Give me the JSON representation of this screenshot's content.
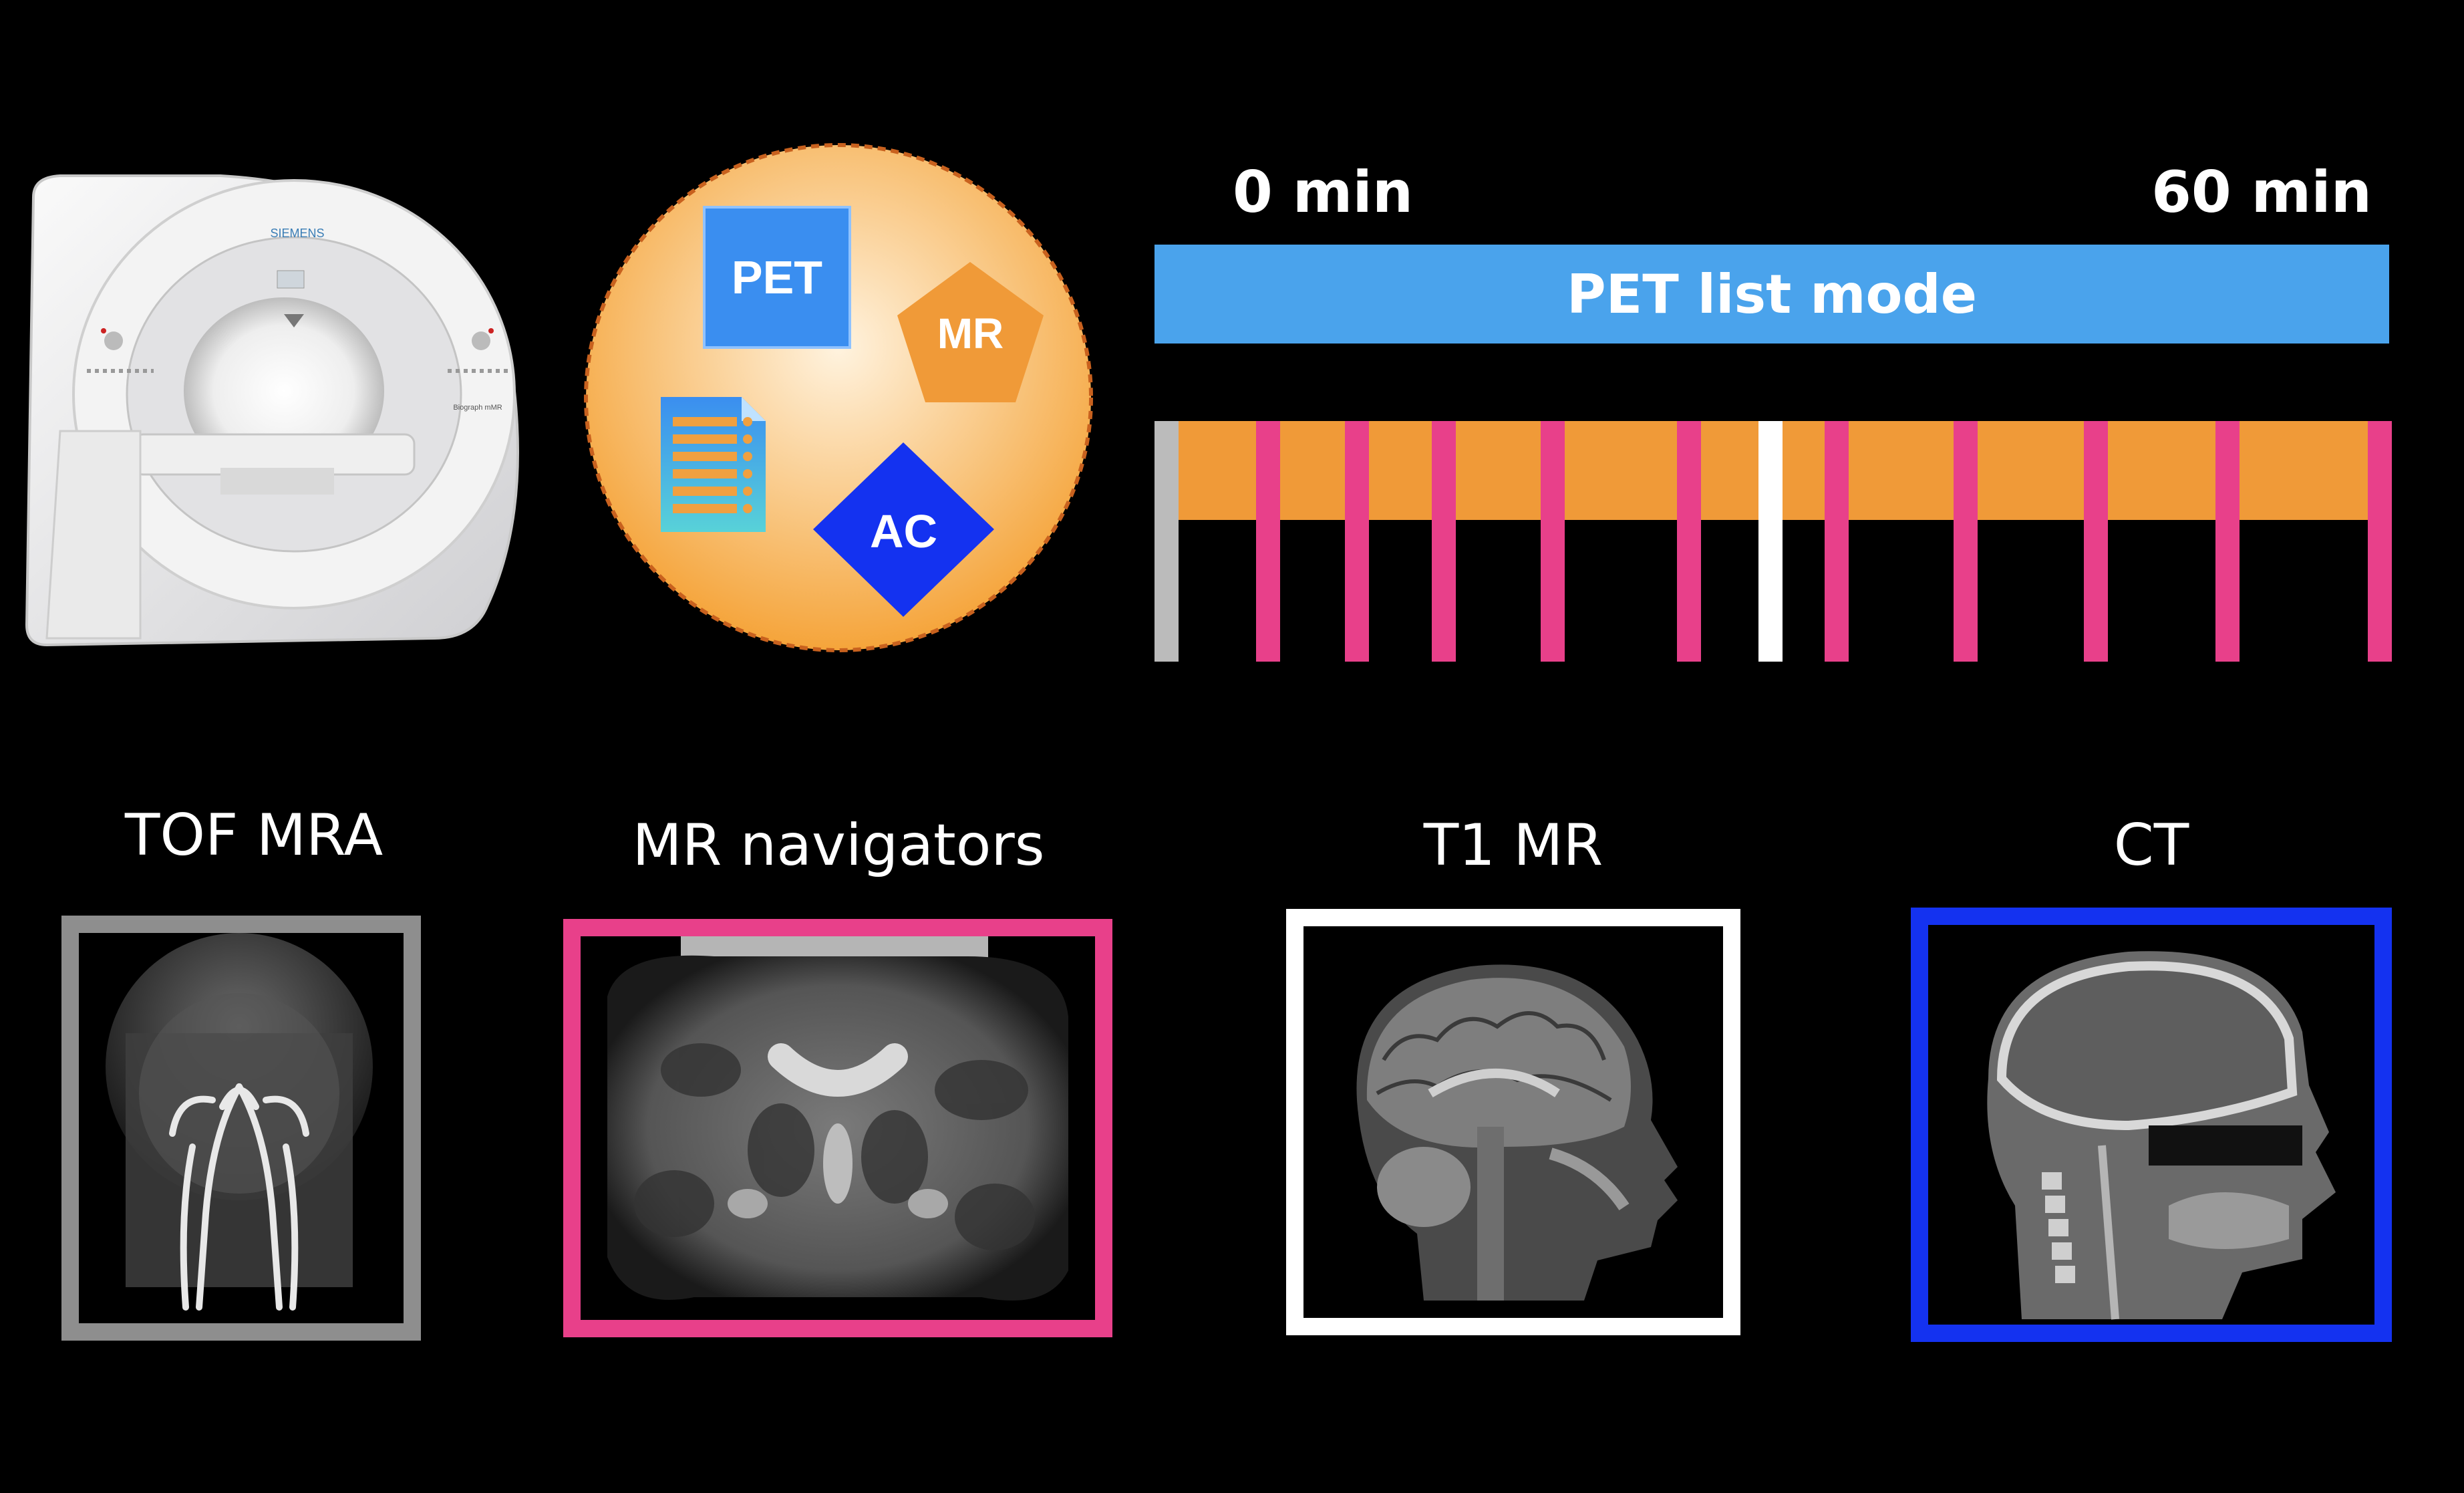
{
  "scanner": {
    "brand": "SIEMENS",
    "model": "Biograph mMR"
  },
  "workflow": {
    "icons": [
      {
        "name": "pet",
        "label": "PET",
        "color": "#3a8ef0"
      },
      {
        "name": "mr",
        "label": "MR",
        "color": "#f09a38"
      },
      {
        "name": "ac",
        "label": "AC",
        "color": "#1432f0"
      },
      {
        "name": "checklist",
        "color": "#f0a040"
      }
    ],
    "circle_color": "#f5a43a"
  },
  "timeline": {
    "start_label": "0 min",
    "end_label": "60 min",
    "pet_bar_label": "PET list mode",
    "pet_bar_color": "#4aa3ec",
    "frames_bar_color": "#f09a38",
    "markers": [
      {
        "kind": "tof-mra",
        "color": "#bbbbbb"
      },
      {
        "kind": "mr-navigator",
        "color": "#e8408a"
      },
      {
        "kind": "mr-navigator",
        "color": "#e8408a"
      },
      {
        "kind": "mr-navigator",
        "color": "#e8408a"
      },
      {
        "kind": "mr-navigator",
        "color": "#e8408a"
      },
      {
        "kind": "mr-navigator",
        "color": "#e8408a"
      },
      {
        "kind": "t1-mr",
        "color": "#ffffff"
      },
      {
        "kind": "mr-navigator",
        "color": "#e8408a"
      },
      {
        "kind": "mr-navigator",
        "color": "#e8408a"
      },
      {
        "kind": "mr-navigator",
        "color": "#e8408a"
      },
      {
        "kind": "mr-navigator",
        "color": "#e8408a"
      },
      {
        "kind": "mr-navigator",
        "color": "#e8408a"
      }
    ]
  },
  "panels": [
    {
      "title": "TOF MRA",
      "border_color": "#8e8e8e"
    },
    {
      "title": "MR navigators",
      "border_color": "#e8408a"
    },
    {
      "title": "T1 MR",
      "border_color": "#ffffff"
    },
    {
      "title": "CT",
      "border_color": "#1432f0"
    }
  ]
}
